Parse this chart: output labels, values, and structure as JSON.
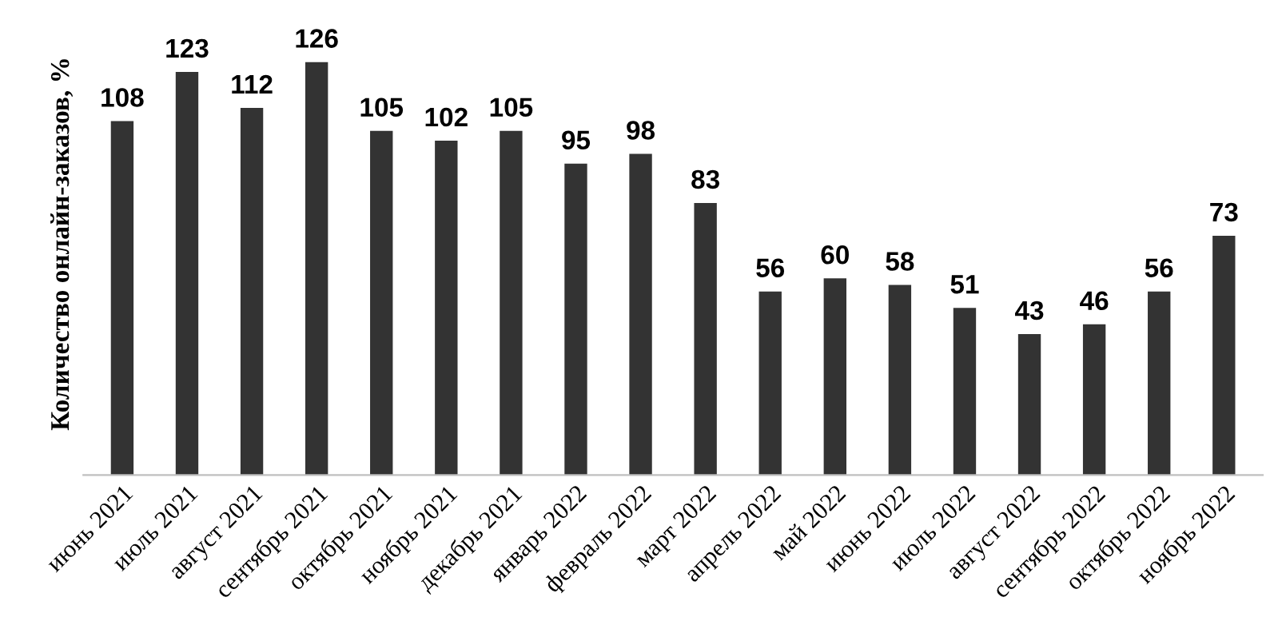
{
  "chart_data": {
    "type": "bar",
    "ylabel": "Количество онлайн-заказов, %",
    "categories": [
      "июнь 2021",
      "июль 2021",
      "август 2021",
      "сентябрь 2021",
      "октябрь 2021",
      "ноябрь 2021",
      "декабрь 2021",
      "январь 2022",
      "февраль 2022",
      "март 2022",
      "апрель 2022",
      "май 2022",
      "июнь 2022",
      "июль 2022",
      "август 2022",
      "сентябрь 2022",
      "октябрь 2022",
      "ноябрь 2022"
    ],
    "values": [
      108,
      123,
      112,
      126,
      105,
      102,
      105,
      95,
      98,
      83,
      56,
      60,
      58,
      51,
      43,
      46,
      56,
      73
    ],
    "color": "#333333",
    "data_labels": true,
    "grid": false,
    "legend": false,
    "tick_labels": "x"
  }
}
